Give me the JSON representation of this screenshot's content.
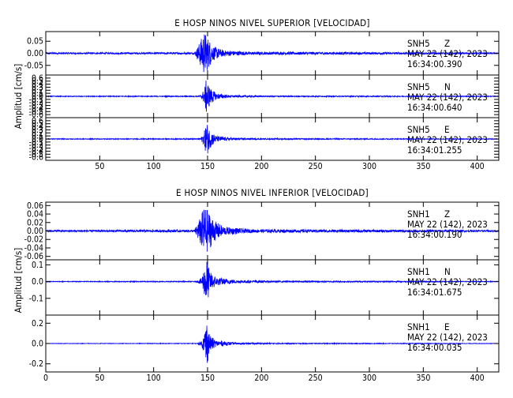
{
  "chart_data": [
    {
      "type": "line",
      "title": "E HOSP NINOS NIVEL SUPERIOR [VELOCIDAD]",
      "ylabel": "Amplitud [cm/s]",
      "xlim": [
        0,
        420
      ],
      "x_ticks": [
        50,
        100,
        150,
        200,
        250,
        300,
        350,
        400
      ],
      "color": "#0000ff",
      "traces": [
        {
          "station": "SNH5",
          "component": "Z",
          "date": "MAY 22 (142), 2023",
          "time": "16:34:00.390",
          "ylim": [
            -0.09,
            0.09
          ],
          "y_ticks": [
            0.05,
            0.0,
            -0.05
          ],
          "y_tick_labels": [
            "0.05",
            "0.00",
            "-0.05"
          ],
          "envelope": [
            [
              0,
              0.003
            ],
            [
              138,
              0.004
            ],
            [
              140,
              0.02
            ],
            [
              143,
              0.05
            ],
            [
              147,
              0.09
            ],
            [
              150,
              0.07
            ],
            [
              155,
              0.03
            ],
            [
              165,
              0.012
            ],
            [
              190,
              0.006
            ],
            [
              420,
              0.003
            ]
          ]
        },
        {
          "station": "SNH5",
          "component": "N",
          "date": "MAY 22 (142), 2023",
          "time": "16:34:00.640",
          "ylim": [
            -0.7,
            0.7
          ],
          "y_ticks": [
            0.6,
            0.5,
            0.4,
            0.3,
            0.2,
            0.1,
            0.0,
            -0.1,
            -0.2,
            -0.3,
            -0.4,
            -0.5,
            -0.6
          ],
          "y_tick_labels": [
            "0.6",
            "0.5",
            "0.4",
            "0.3",
            "0.2",
            "0.1",
            "0.0",
            "-0.1",
            "-0.2",
            "-0.3",
            "-0.4",
            "-0.5",
            "-0.6"
          ],
          "envelope": [
            [
              0,
              0.012
            ],
            [
              140,
              0.015
            ],
            [
              144,
              0.05
            ],
            [
              147,
              0.25
            ],
            [
              149,
              0.6
            ],
            [
              152,
              0.3
            ],
            [
              158,
              0.1
            ],
            [
              170,
              0.04
            ],
            [
              200,
              0.02
            ],
            [
              420,
              0.012
            ]
          ]
        },
        {
          "station": "SNH5",
          "component": "E",
          "date": "MAY 22 (142), 2023",
          "time": "16:34:01.255",
          "ylim": [
            -0.7,
            0.7
          ],
          "y_ticks": [
            0.6,
            0.5,
            0.4,
            0.3,
            0.2,
            0.1,
            0.0,
            -0.1,
            -0.2,
            -0.3,
            -0.4,
            -0.5,
            -0.6
          ],
          "y_tick_labels": [
            "0.6",
            "0.5",
            "0.4",
            "0.3",
            "0.2",
            "0.1",
            "0.0",
            "-0.1",
            "-0.2",
            "-0.3",
            "-0.4",
            "-0.5",
            "-0.6"
          ],
          "envelope": [
            [
              0,
              0.012
            ],
            [
              140,
              0.015
            ],
            [
              144,
              0.05
            ],
            [
              147,
              0.25
            ],
            [
              149,
              0.6
            ],
            [
              152,
              0.3
            ],
            [
              158,
              0.1
            ],
            [
              170,
              0.04
            ],
            [
              200,
              0.02
            ],
            [
              420,
              0.012
            ]
          ]
        }
      ]
    },
    {
      "type": "line",
      "title": "E HOSP NINOS NIVEL INFERIOR [VELOCIDAD]",
      "ylabel": "Amplitud [cm/s]",
      "xlim": [
        0,
        420
      ],
      "x_ticks": [
        0,
        50,
        100,
        150,
        200,
        250,
        300,
        350,
        400
      ],
      "color": "#0000ff",
      "traces": [
        {
          "station": "SNH1",
          "component": "Z",
          "date": "MAY 22 (142), 2023",
          "time": "16:34:00.190",
          "ylim": [
            -0.068,
            0.068
          ],
          "y_ticks": [
            0.06,
            0.04,
            0.02,
            0.0,
            -0.02,
            -0.04,
            -0.06
          ],
          "y_tick_labels": [
            "0.06",
            "0.04",
            "0.02",
            "0.00",
            "-0.02",
            "-0.04",
            "-0.06"
          ],
          "envelope": [
            [
              0,
              0.002
            ],
            [
              138,
              0.003
            ],
            [
              140,
              0.015
            ],
            [
              143,
              0.03
            ],
            [
              147,
              0.06
            ],
            [
              150,
              0.05
            ],
            [
              156,
              0.025
            ],
            [
              165,
              0.01
            ],
            [
              190,
              0.004
            ],
            [
              420,
              0.002
            ]
          ]
        },
        {
          "station": "SNH1",
          "component": "N",
          "date": "MAY 22 (142), 2023",
          "time": "16:34:01.675",
          "ylim": [
            -0.2,
            0.13
          ],
          "y_ticks": [
            0.1,
            0.0,
            -0.1
          ],
          "y_tick_labels": [
            "0.1",
            "0.0",
            "-0.1"
          ],
          "envelope": [
            [
              0,
              0.002
            ],
            [
              140,
              0.003
            ],
            [
              144,
              0.02
            ],
            [
              147,
              0.08
            ],
            [
              149,
              0.15
            ],
            [
              152,
              0.06
            ],
            [
              158,
              0.025
            ],
            [
              175,
              0.01
            ],
            [
              210,
              0.005
            ],
            [
              420,
              0.002
            ]
          ]
        },
        {
          "station": "SNH1",
          "component": "E",
          "date": "MAY 22 (142), 2023",
          "time": "16:34:00.035",
          "ylim": [
            -0.28,
            0.28
          ],
          "y_ticks": [
            0.2,
            0.0,
            -0.2
          ],
          "y_tick_labels": [
            "0.2",
            "0.0",
            "-0.2"
          ],
          "envelope": [
            [
              0,
              0.002
            ],
            [
              140,
              0.003
            ],
            [
              144,
              0.02
            ],
            [
              147,
              0.1
            ],
            [
              149,
              0.25
            ],
            [
              152,
              0.08
            ],
            [
              158,
              0.03
            ],
            [
              175,
              0.01
            ],
            [
              210,
              0.005
            ],
            [
              420,
              0.002
            ]
          ]
        }
      ]
    }
  ]
}
